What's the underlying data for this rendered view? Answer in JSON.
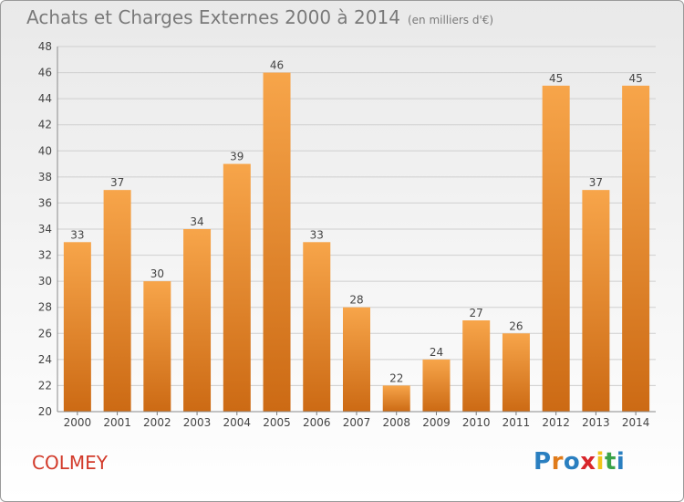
{
  "title": "Achats et Charges Externes 2000 à 2014",
  "subtitle": "(en milliers d'€)",
  "commune": "COLMEY",
  "logo": {
    "text": "Proxiti",
    "letter_colors": [
      "#2a7fc0",
      "#e07b1a",
      "#2a7fc0",
      "#d8262b",
      "#f0c419",
      "#3aa349",
      "#2a7fc0"
    ]
  },
  "colors": {
    "bar_top": "#f7a54a",
    "bar_bottom": "#cc6a14",
    "grid": "#cfcfcf",
    "axis_text": "#444444",
    "commune": "#d23a2a"
  },
  "chart_data": {
    "type": "bar",
    "categories": [
      "2000",
      "2001",
      "2002",
      "2003",
      "2004",
      "2005",
      "2006",
      "2007",
      "2008",
      "2009",
      "2010",
      "2011",
      "2012",
      "2013",
      "2014"
    ],
    "values": [
      33,
      37,
      30,
      34,
      39,
      46,
      33,
      28,
      22,
      24,
      27,
      26,
      45,
      37,
      45
    ],
    "ylim": [
      20,
      48
    ],
    "yticks": [
      20,
      22,
      24,
      26,
      28,
      30,
      32,
      34,
      36,
      38,
      40,
      42,
      44,
      46,
      48
    ],
    "grid": true,
    "data_labels": true
  }
}
